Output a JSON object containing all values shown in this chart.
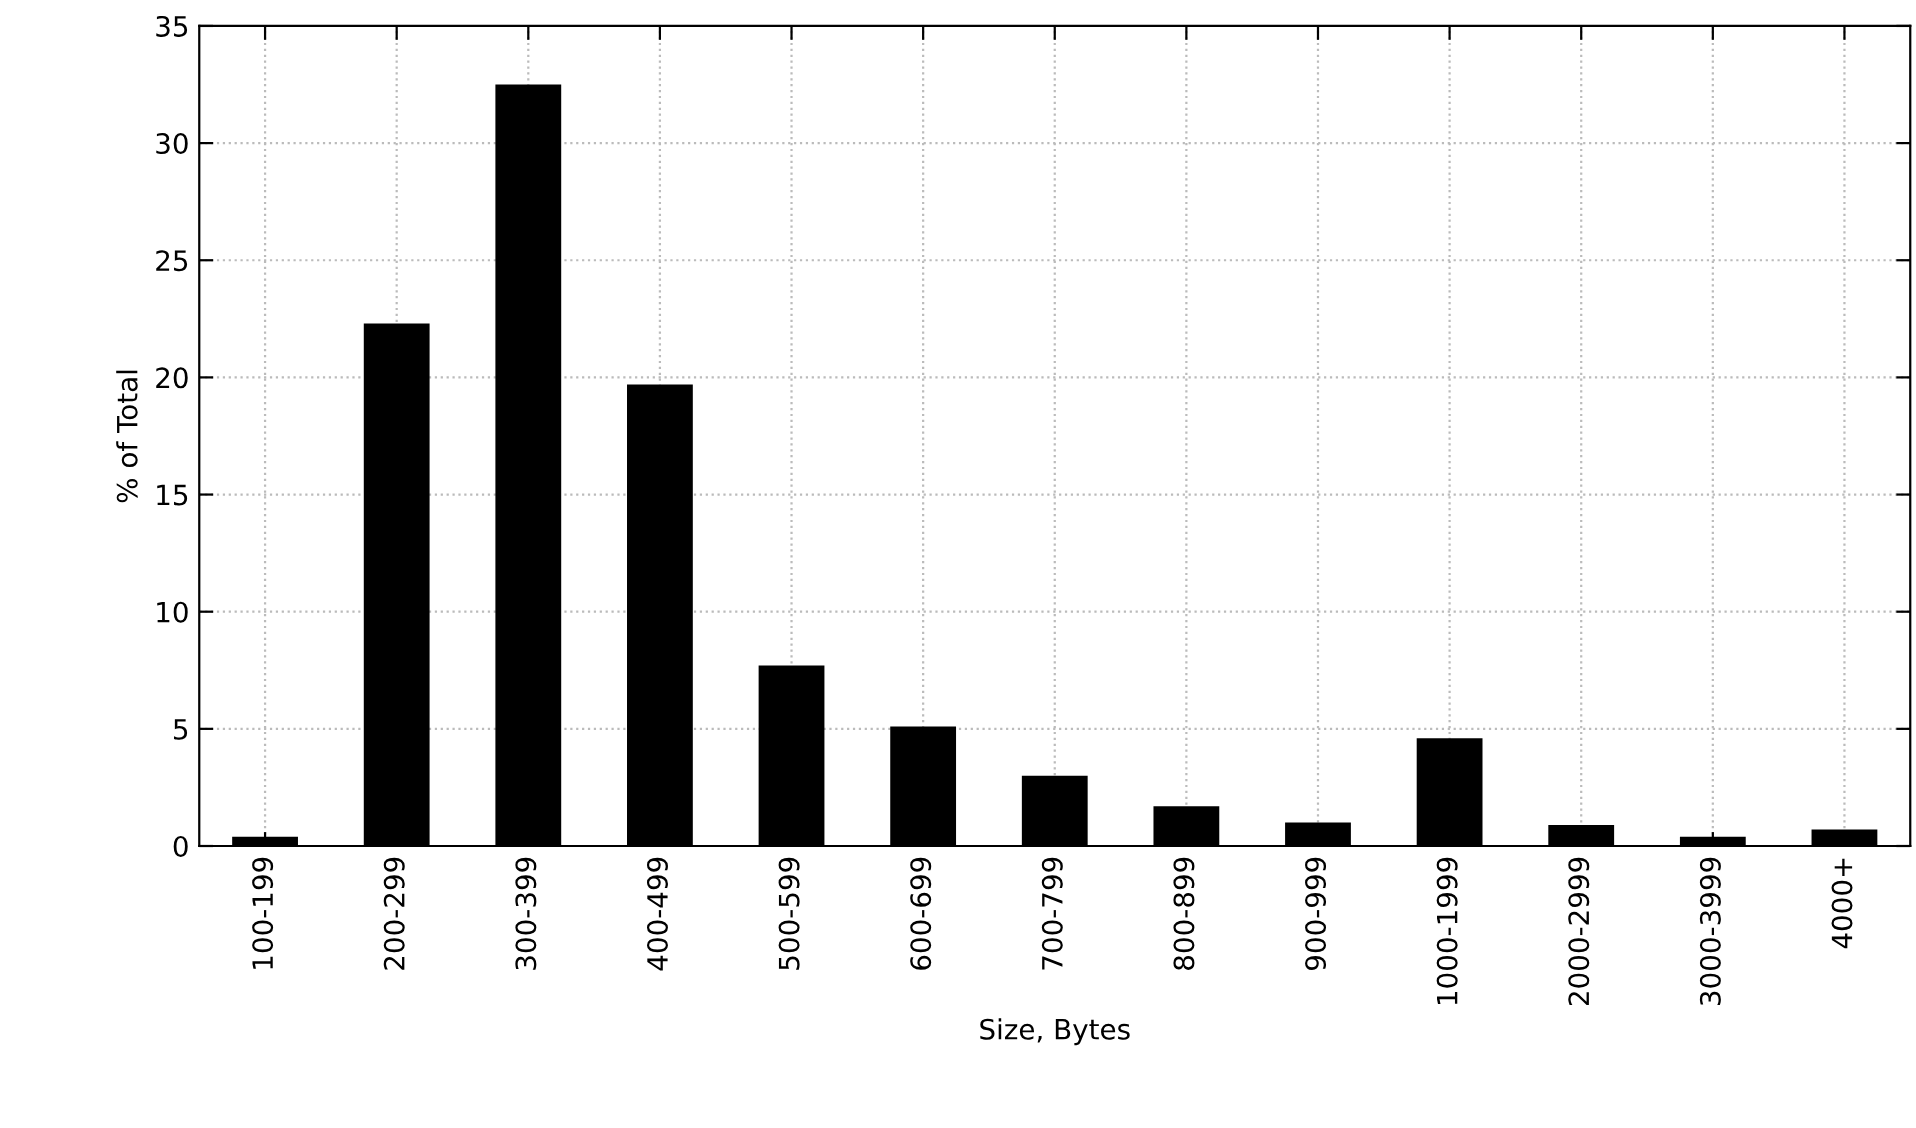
{
  "chart_data": {
    "type": "bar",
    "xlabel": "Size, Bytes",
    "ylabel": "% of Total",
    "categories": [
      "100-199",
      "200-299",
      "300-399",
      "400-499",
      "500-599",
      "600-699",
      "700-799",
      "800-899",
      "900-999",
      "1000-1999",
      "2000-2999",
      "3000-3999",
      "4000+"
    ],
    "values": [
      0.4,
      22.3,
      32.5,
      19.7,
      7.7,
      5.1,
      3.0,
      1.7,
      1.0,
      4.6,
      0.9,
      0.4,
      0.7
    ],
    "color": "#000000",
    "ylim": [
      0,
      35
    ],
    "yticks": [
      0,
      5,
      10,
      15,
      20,
      25,
      30,
      35
    ],
    "grid": true,
    "legend": false
  }
}
